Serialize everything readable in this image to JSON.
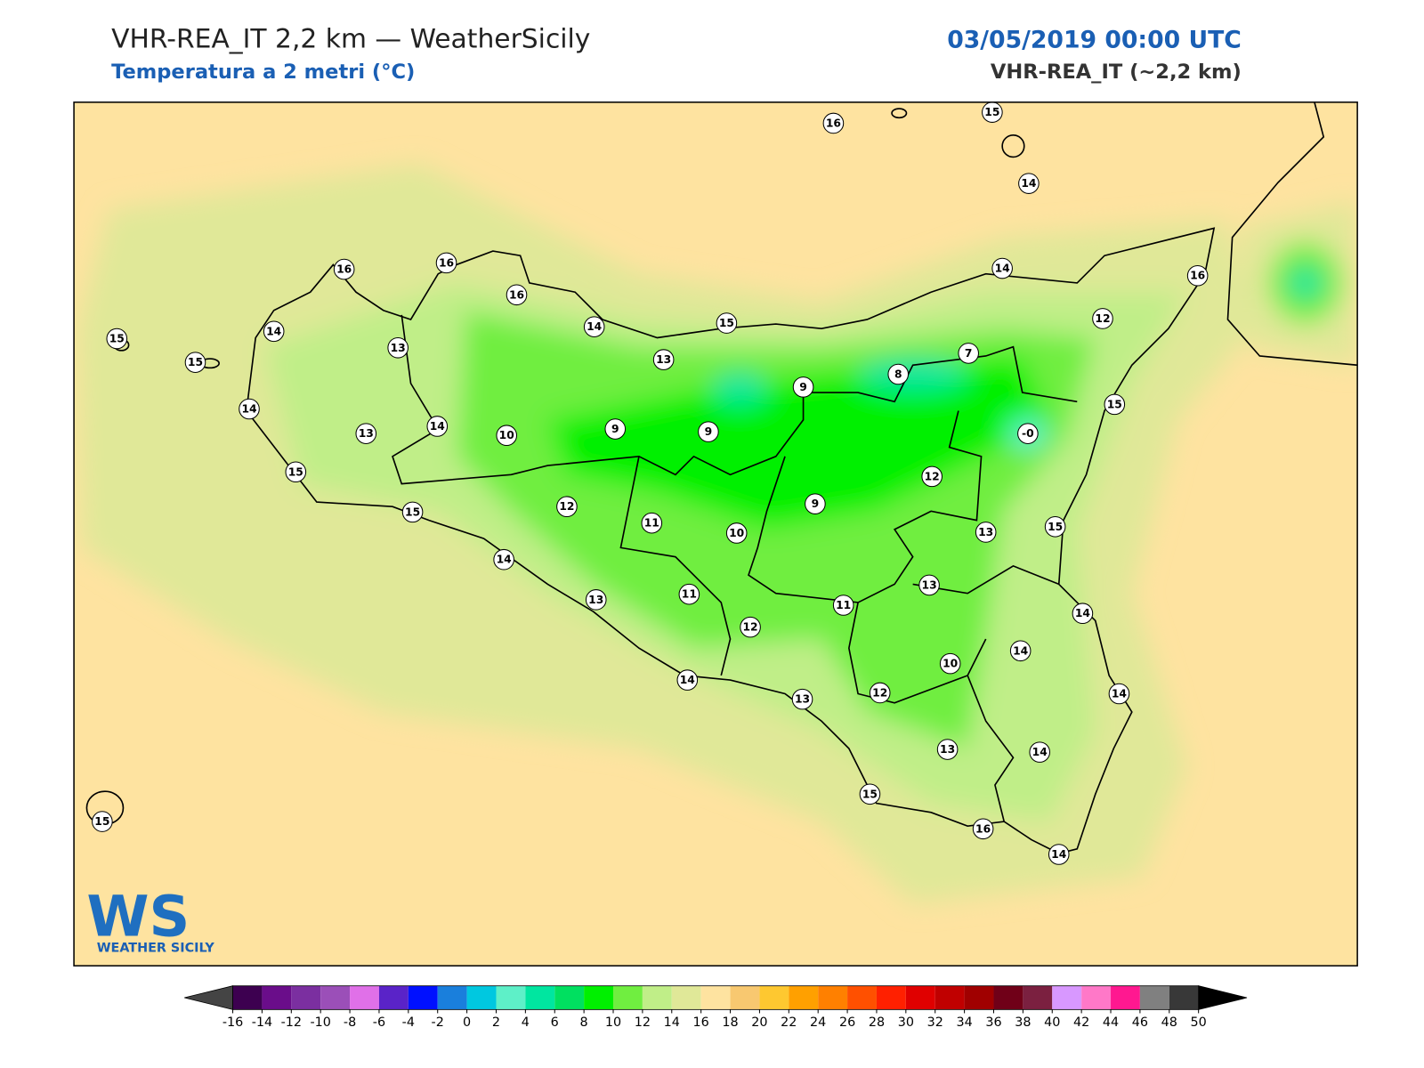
{
  "header": {
    "title": "VHR-REA_IT 2,2 km — WeatherSicily",
    "subtitle": "Temperatura a 2 metri (°C)",
    "date": "03/05/2019 00:00 UTC",
    "model": "VHR-REA_IT (~2,2 km)"
  },
  "logo": {
    "mark": "WS",
    "name": "WEATHER SICILY"
  },
  "stations": [
    "16",
    "15",
    "14",
    "16",
    "16",
    "16",
    "14",
    "16",
    "15",
    "14",
    "13",
    "14",
    "15",
    "12",
    "15",
    "13",
    "7",
    "8",
    "9",
    "15",
    "14",
    "13",
    "14",
    "10",
    "9",
    "9",
    "-0",
    "15",
    "12",
    "9",
    "15",
    "12",
    "11",
    "10",
    "13",
    "15",
    "14",
    "13",
    "14",
    "13",
    "11",
    "12",
    "11",
    "14",
    "10",
    "14",
    "13",
    "12",
    "14",
    "13",
    "14",
    "15",
    "16",
    "14",
    "15"
  ],
  "colorbar": {
    "ticks": [
      -16,
      -14,
      -12,
      -10,
      -8,
      -6,
      -4,
      -2,
      0,
      2,
      4,
      6,
      8,
      10,
      12,
      14,
      16,
      18,
      20,
      22,
      24,
      26,
      28,
      30,
      32,
      34,
      36,
      38,
      40,
      42,
      44,
      46,
      48,
      50
    ],
    "colors": [
      "#3d0050",
      "#6a0d8a",
      "#7b2fa0",
      "#9b4fb8",
      "#e070e8",
      "#5a23c8",
      "#0010ff",
      "#1a7fdc",
      "#00c8e0",
      "#5ef0c8",
      "#00e6a0",
      "#00e060",
      "#00f000",
      "#70ee40",
      "#c0ee88",
      "#e0e898",
      "#fee3a0",
      "#f8c870",
      "#fec830",
      "#ffa000",
      "#ff8000",
      "#ff5000",
      "#ff2000",
      "#e00000",
      "#c00000",
      "#a00000",
      "#700018",
      "#7b2040",
      "#d898ff",
      "#ff78c8",
      "#ff1890",
      "#808080",
      "#383838"
    ],
    "under": "#444444",
    "over": "#000000"
  }
}
